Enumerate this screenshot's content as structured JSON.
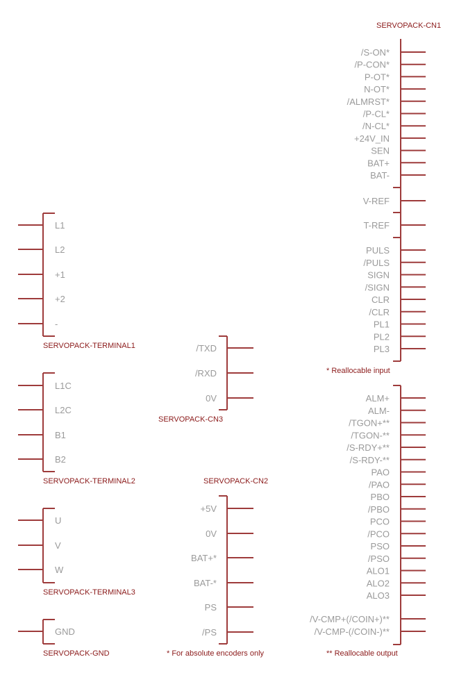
{
  "parts": {
    "cn1": {
      "name": "SERVOPACK-CN1",
      "pins": [
        "/S-ON*",
        "/P-CON*",
        "P-OT*",
        "N-OT*",
        "/ALMRST*",
        "/P-CL*",
        "/N-CL*",
        "+24V_IN",
        "SEN",
        "BAT+",
        "BAT-",
        "V-REF",
        "T-REF",
        "PULS",
        "/PULS",
        "SIGN",
        "/SIGN",
        "CLR",
        "/CLR",
        "PL1",
        "PL2",
        "PL3"
      ],
      "note": "* Reallocable input"
    },
    "cn1_out": {
      "pins": [
        "ALM+",
        "ALM-",
        "/TGON+**",
        "/TGON-**",
        "/S-RDY+**",
        "/S-RDY-**",
        "PAO",
        "/PAO",
        "PBO",
        "/PBO",
        "PCO",
        "/PCO",
        "PSO",
        "/PSO",
        "ALO1",
        "ALO2",
        "ALO3",
        "/V-CMP+(/COIN+)**",
        "/V-CMP-(/COIN-)**"
      ],
      "note": "** Reallocable output"
    },
    "terminal1": {
      "name": "SERVOPACK-TERMINAL1",
      "pins": [
        "L1",
        "L2",
        "+1",
        "+2",
        "-"
      ]
    },
    "terminal2": {
      "name": "SERVOPACK-TERMINAL2",
      "pins": [
        "L1C",
        "L2C",
        "B1",
        "B2"
      ]
    },
    "terminal3": {
      "name": "SERVOPACK-TERMINAL3",
      "pins": [
        "U",
        "V",
        "W"
      ]
    },
    "gnd": {
      "name": "SERVOPACK-GND",
      "pins": [
        "GND"
      ]
    },
    "cn3": {
      "name": "SERVOPACK-CN3",
      "pins": [
        "/TXD",
        "/RXD",
        "0V"
      ]
    },
    "cn2": {
      "name": "SERVOPACK-CN2",
      "pins": [
        "+5V",
        "0V",
        "BAT+*",
        "BAT-*",
        "PS",
        "/PS"
      ],
      "note": "* For absolute encoders only"
    }
  }
}
